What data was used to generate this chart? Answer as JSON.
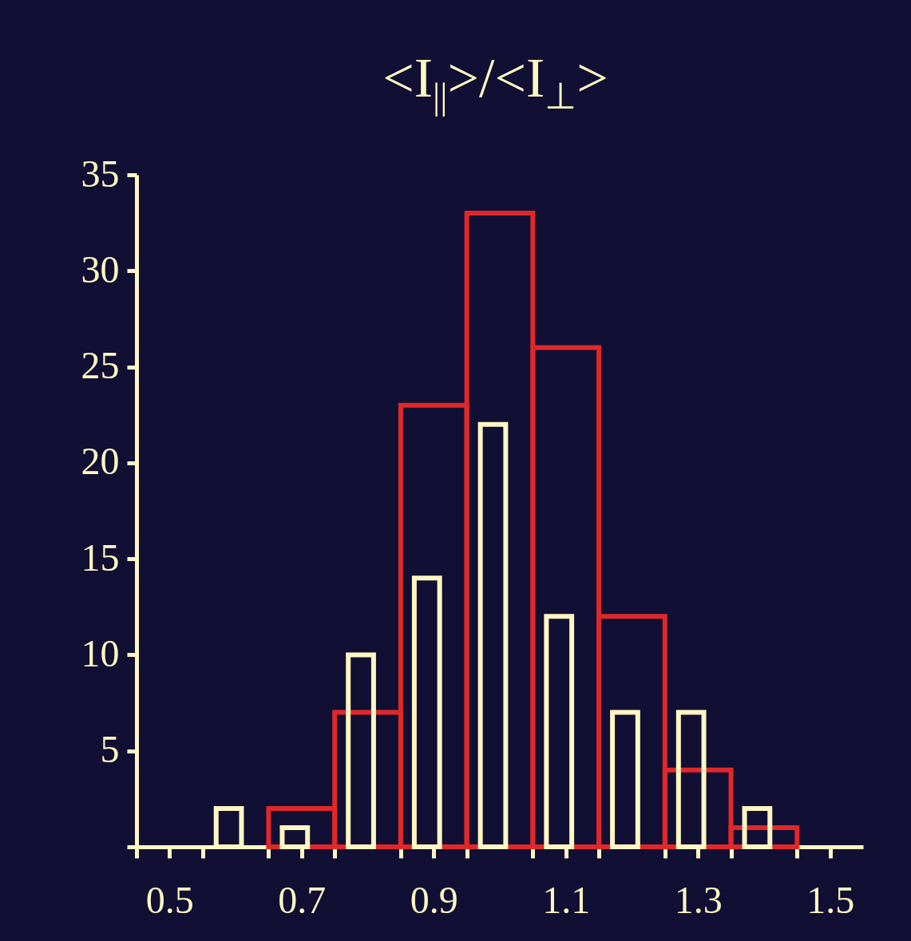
{
  "chart_data": {
    "type": "histogram",
    "title": "<I$_{||}$>/<I$_{⊥}$>",
    "bins": [
      0.55,
      0.65,
      0.75,
      0.85,
      0.95,
      1.05,
      1.15,
      1.25,
      1.35,
      1.45
    ],
    "series": [
      {
        "color": "#e0282a",
        "values": [
          null,
          2,
          7,
          23,
          33,
          26,
          12,
          4,
          1
        ]
      },
      {
        "color": "#fff7c2",
        "values": [
          2,
          1,
          10,
          14,
          22,
          12,
          7,
          7,
          2
        ]
      }
    ],
    "xlim": [
      0.45,
      1.55
    ],
    "xticks": [
      {
        "value": 0.45,
        "label": null
      },
      0.5,
      {
        "value": 0.55,
        "label": null
      },
      {
        "value": 0.65,
        "label": null
      },
      0.7,
      {
        "value": 0.75,
        "label": null
      },
      {
        "value": 0.85,
        "label": null
      },
      0.9,
      {
        "value": 0.95,
        "label": null
      },
      {
        "value": 1.05,
        "label": null
      },
      1.1,
      {
        "value": 1.15,
        "label": null
      },
      {
        "value": 1.25,
        "label": null
      },
      1.3,
      {
        "value": 1.35,
        "label": null
      },
      {
        "value": 1.45,
        "label": null
      },
      1.5
    ],
    "ylim": [
      0,
      35
    ],
    "yticks": [
      {
        "value": 0,
        "label": null
      },
      5,
      10,
      15,
      20,
      25,
      30,
      35
    ],
    "grid": false
  }
}
